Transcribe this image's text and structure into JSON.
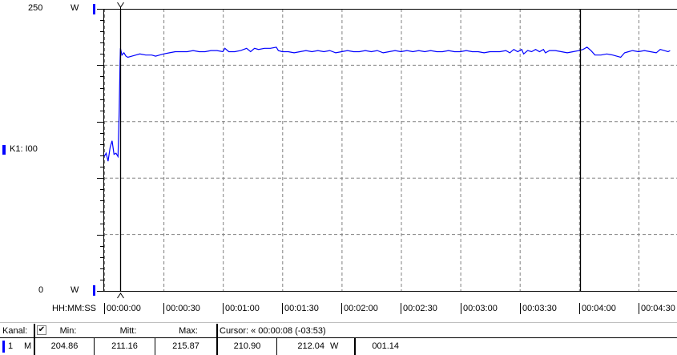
{
  "axis": {
    "y_top_label": "250",
    "y_bottom_label": "0",
    "y_unit": "W",
    "time_format_label": "HH:MM:SS",
    "time_ticks": [
      "00:00:00",
      "00:00:30",
      "00:01:00",
      "00:01:30",
      "00:02:00",
      "00:02:30",
      "00:03:00",
      "00:03:30",
      "00:04:00",
      "00:04:30"
    ]
  },
  "channel_label": "K1: I00",
  "colors": {
    "series": "#0000ff",
    "cursor": "#000000",
    "cursor_highlight": "#ffff00",
    "grid": "#808080"
  },
  "chart_data": {
    "type": "line",
    "ylim": [
      0,
      250
    ],
    "xlim_seconds": [
      0,
      288
    ],
    "grid": true,
    "y_major_step": 50,
    "y_minor_step": 10,
    "x_major_step_seconds": 30,
    "cursors_seconds": [
      8,
      240.5
    ],
    "series": [
      {
        "points": [
          [
            0,
            119
          ],
          [
            1,
            122
          ],
          [
            2,
            115
          ],
          [
            3,
            127
          ],
          [
            4,
            133
          ],
          [
            5,
            121
          ],
          [
            6,
            122
          ],
          [
            7,
            119
          ],
          [
            7.6,
            160
          ],
          [
            8,
            201
          ],
          [
            8.2,
            215
          ],
          [
            9,
            209
          ],
          [
            10,
            211
          ],
          [
            11,
            208
          ],
          [
            12,
            207
          ],
          [
            14,
            208
          ],
          [
            16,
            209
          ],
          [
            18,
            210
          ],
          [
            21,
            209
          ],
          [
            24,
            209
          ],
          [
            26,
            208
          ],
          [
            28,
            209
          ],
          [
            30,
            210
          ],
          [
            33,
            211
          ],
          [
            36,
            212
          ],
          [
            39,
            212
          ],
          [
            42,
            212
          ],
          [
            45,
            213
          ],
          [
            48,
            212
          ],
          [
            51,
            212
          ],
          [
            54,
            213
          ],
          [
            57,
            213
          ],
          [
            60,
            212
          ],
          [
            61,
            215
          ],
          [
            63,
            212
          ],
          [
            66,
            212
          ],
          [
            69,
            213
          ],
          [
            72,
            215
          ],
          [
            74,
            212
          ],
          [
            76,
            215
          ],
          [
            78,
            214
          ],
          [
            81,
            215
          ],
          [
            84,
            215
          ],
          [
            87,
            216
          ],
          [
            88,
            213
          ],
          [
            90,
            212
          ],
          [
            93,
            212
          ],
          [
            96,
            211
          ],
          [
            99,
            212
          ],
          [
            102,
            213
          ],
          [
            105,
            212
          ],
          [
            108,
            213
          ],
          [
            111,
            212
          ],
          [
            114,
            213
          ],
          [
            117,
            211
          ],
          [
            120,
            212
          ],
          [
            123,
            213
          ],
          [
            126,
            212
          ],
          [
            129,
            212
          ],
          [
            132,
            213
          ],
          [
            135,
            212
          ],
          [
            138,
            213
          ],
          [
            141,
            211
          ],
          [
            144,
            212
          ],
          [
            147,
            213
          ],
          [
            150,
            212
          ],
          [
            153,
            213
          ],
          [
            156,
            212
          ],
          [
            159,
            213
          ],
          [
            162,
            212
          ],
          [
            165,
            213
          ],
          [
            168,
            212
          ],
          [
            171,
            212
          ],
          [
            174,
            213
          ],
          [
            177,
            212
          ],
          [
            180,
            212
          ],
          [
            183,
            213
          ],
          [
            186,
            212
          ],
          [
            189,
            212
          ],
          [
            192,
            211
          ],
          [
            195,
            212
          ],
          [
            198,
            212
          ],
          [
            200,
            212
          ],
          [
            203,
            213
          ],
          [
            205,
            211
          ],
          [
            207,
            214
          ],
          [
            209,
            212
          ],
          [
            211,
            214
          ],
          [
            212,
            210
          ],
          [
            214,
            213
          ],
          [
            216,
            212
          ],
          [
            218,
            214
          ],
          [
            220,
            212
          ],
          [
            222,
            214
          ],
          [
            223,
            211
          ],
          [
            225,
            213
          ],
          [
            228,
            213
          ],
          [
            231,
            212
          ],
          [
            234,
            211
          ],
          [
            237,
            212
          ],
          [
            240,
            213
          ],
          [
            242,
            214
          ],
          [
            244,
            216
          ],
          [
            246,
            213
          ],
          [
            248,
            209
          ],
          [
            251,
            209
          ],
          [
            254,
            210
          ],
          [
            257,
            209
          ],
          [
            259,
            208
          ],
          [
            261,
            207
          ],
          [
            263,
            211
          ],
          [
            265,
            212
          ],
          [
            267,
            213
          ],
          [
            270,
            212
          ],
          [
            273,
            213
          ],
          [
            276,
            212
          ],
          [
            279,
            211
          ],
          [
            281,
            214
          ],
          [
            283,
            213
          ],
          [
            285,
            212
          ],
          [
            286,
            213
          ]
        ]
      }
    ]
  },
  "table": {
    "header": {
      "kanal": "Kanal:",
      "checked": true,
      "min": "Min:",
      "mitt": "Mitt:",
      "max": "Max:",
      "cursor": "Cursor: « 00:00:08 (-03:53)"
    },
    "row": {
      "channel": "1",
      "mode": "M",
      "min": "204.86",
      "mitt": "211.16",
      "max": "215.87",
      "cursor_value": "210.90",
      "cursor2_value": "212.04",
      "unit": "W",
      "diff": "001.14"
    }
  }
}
